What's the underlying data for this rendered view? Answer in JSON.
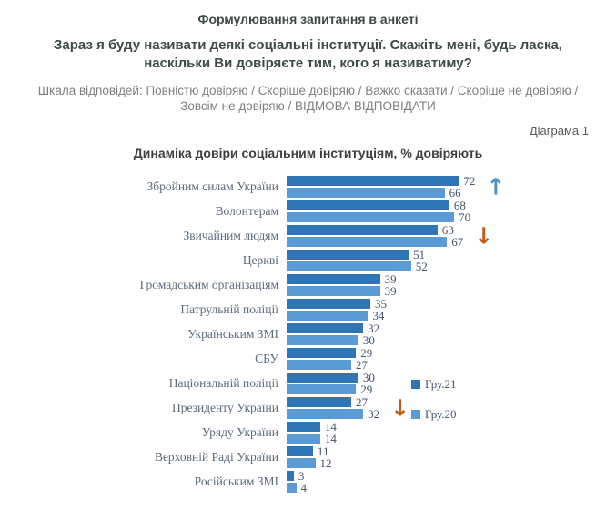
{
  "header": {
    "line1": "Формулювання запитання в анкеті",
    "question": "Зараз я буду називати деякі соціальні інституції. Скажіть мені, будь ласка, наскільки Ви довіряєте тим, кого я називатиму?",
    "scale": "Шкала відповідей: Повністю довіряю / Скоріше довіряю / Важко сказати / Скоріше не довіряю / Зовсім не довіряю / ВІДМОВА ВІДПОВІДАТИ",
    "diagram_label": "Діаграма 1"
  },
  "chart_data": {
    "type": "bar",
    "orientation": "horizontal",
    "title": "Динаміка довіри соціальним інституціям, % довіряють",
    "categories": [
      "Збройним силам України",
      "Волонтерам",
      "Звичайним людям",
      "Церкві",
      "Громадським організаціям",
      "Патрульній поліції",
      "Українським ЗМІ",
      "СБУ",
      "Національній поліції",
      "Президенту України",
      "Уряду України",
      "Верховній Раді України",
      "Російським ЗМІ"
    ],
    "series": [
      {
        "name": "Гру.21",
        "color": "#2E75B6",
        "values": [
          72,
          68,
          63,
          51,
          39,
          35,
          32,
          29,
          30,
          27,
          14,
          11,
          3
        ]
      },
      {
        "name": "Гру.20",
        "color": "#5B9BD5",
        "values": [
          66,
          70,
          67,
          52,
          39,
          34,
          30,
          27,
          29,
          32,
          14,
          12,
          4
        ]
      }
    ],
    "arrows": [
      {
        "category_index": 0,
        "direction": "up",
        "color": "#4E91C9"
      },
      {
        "category_index": 2,
        "direction": "down",
        "color": "#C55A11"
      },
      {
        "category_index": 9,
        "direction": "down",
        "color": "#C55A11"
      }
    ],
    "xlim": [
      0,
      80
    ],
    "grid": false,
    "legend_position": "right-middle",
    "value_labels": "outside-end"
  }
}
